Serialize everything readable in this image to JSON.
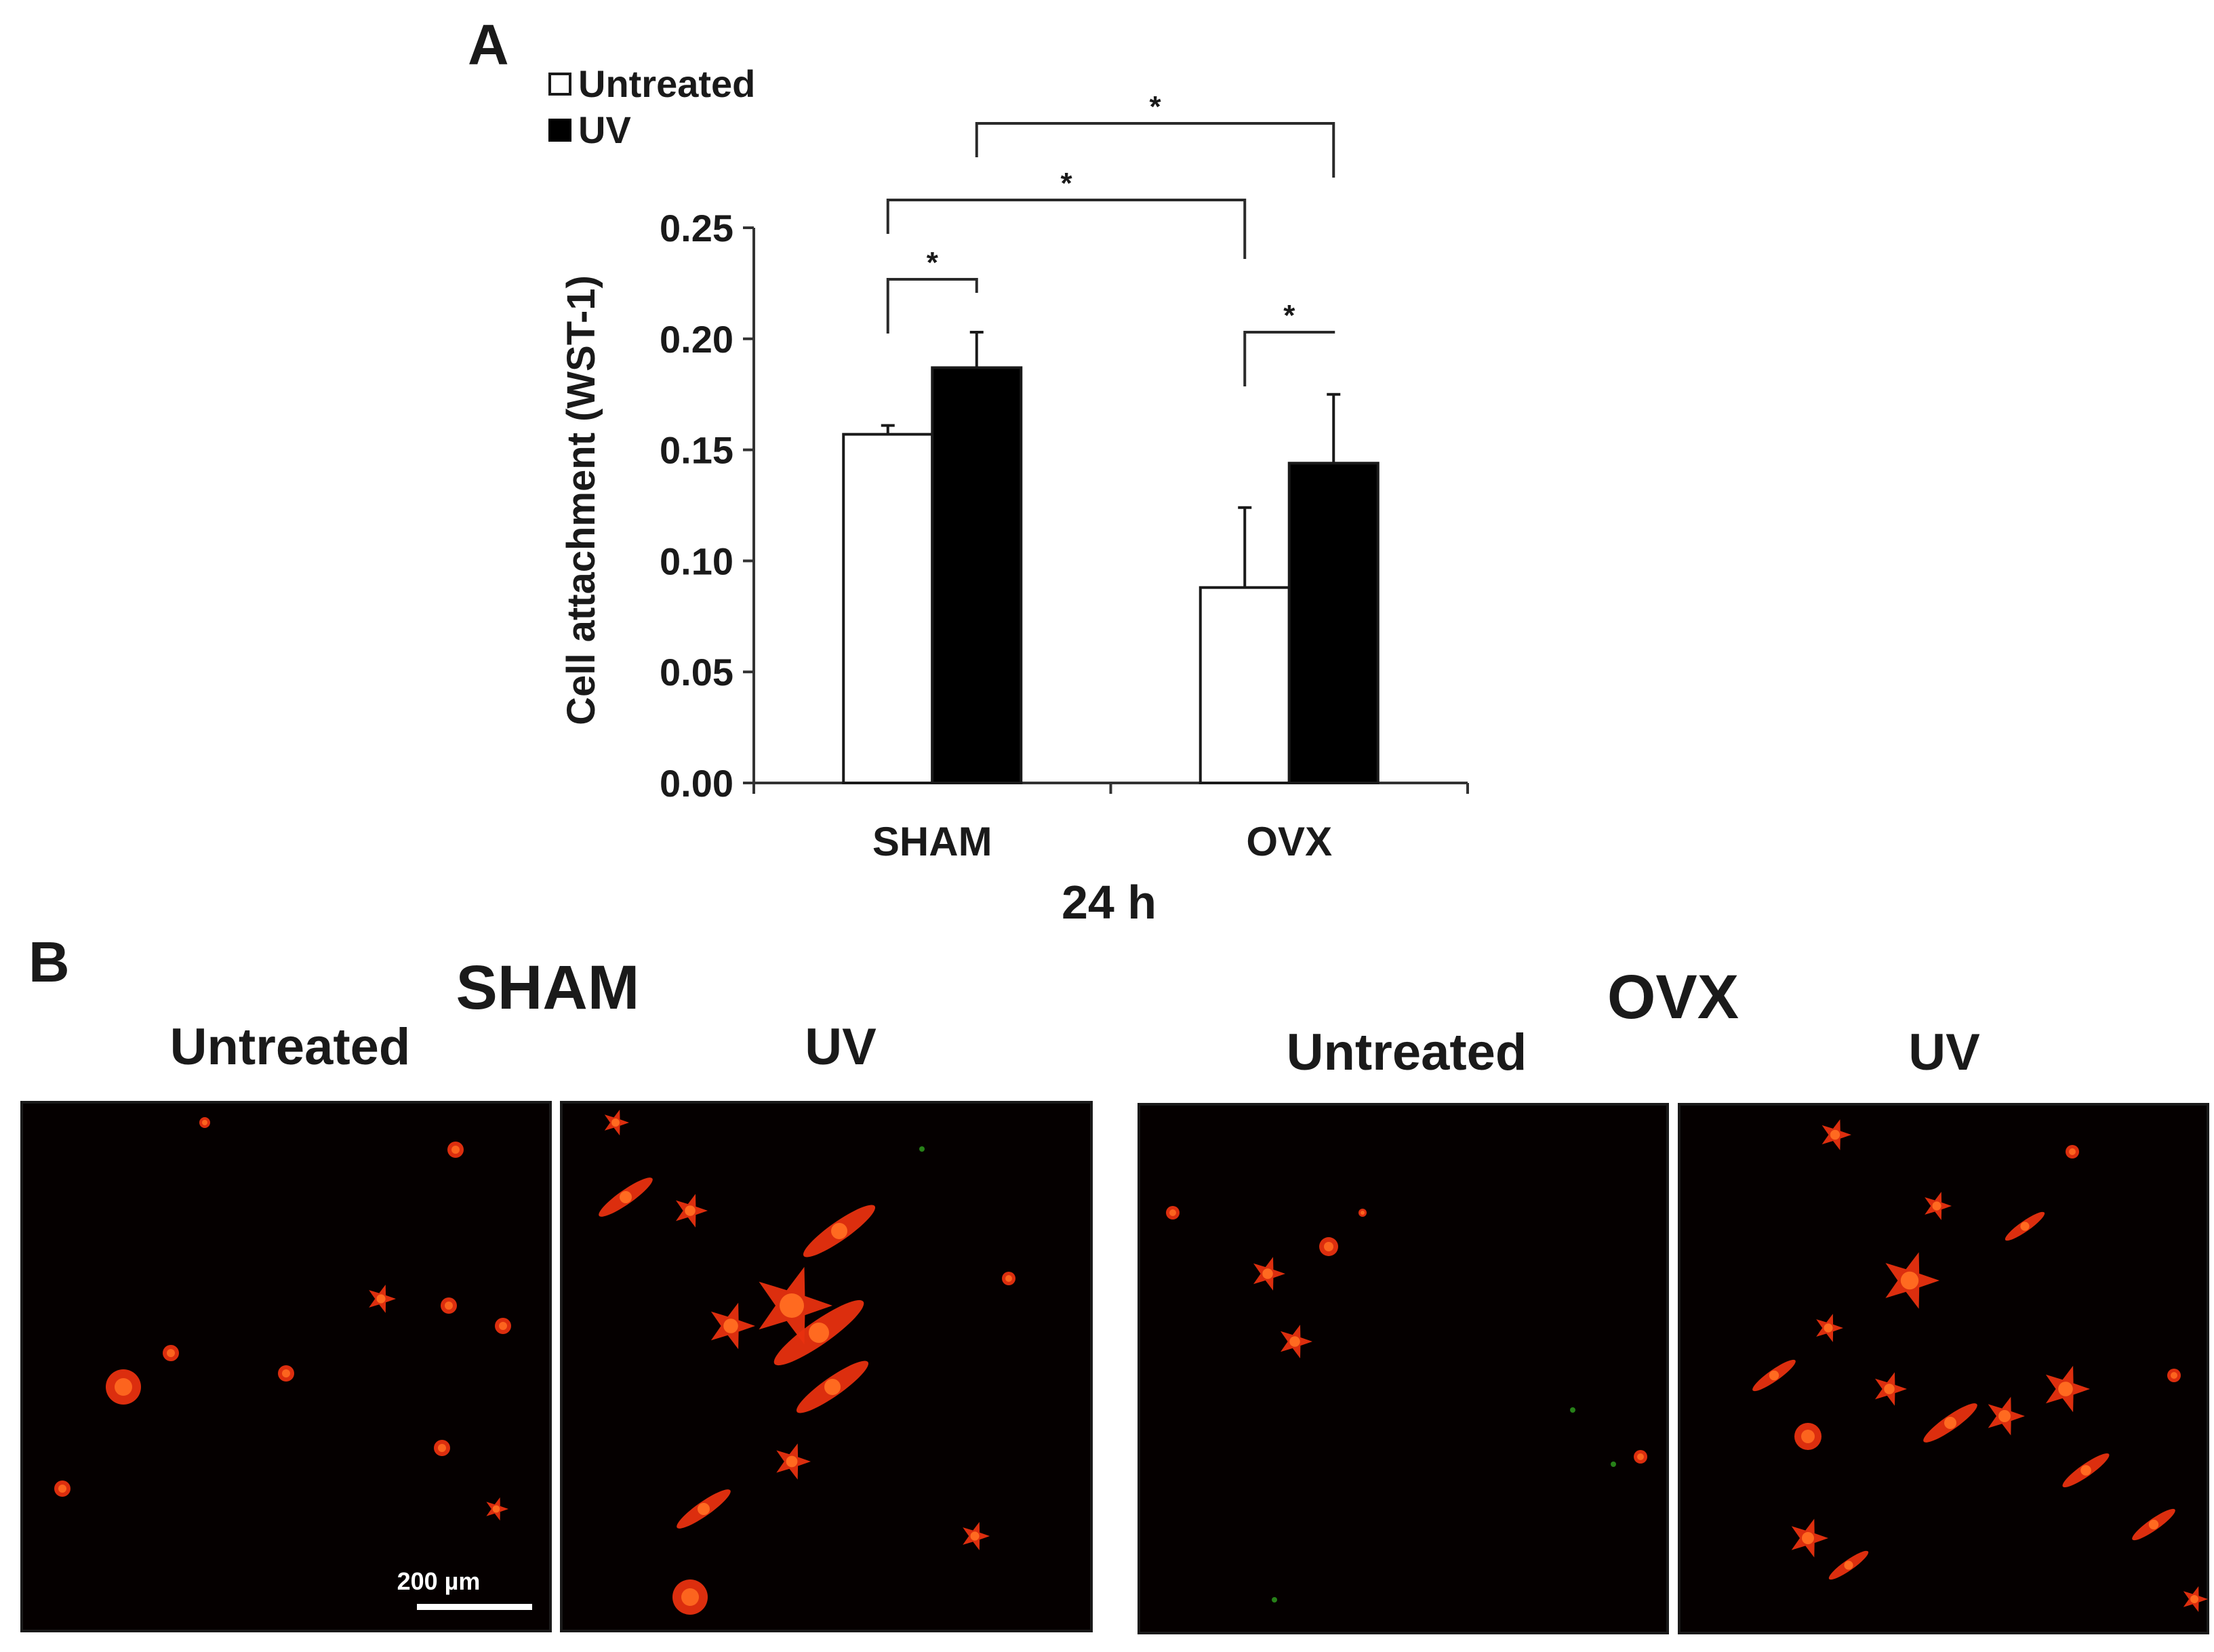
{
  "panel_labels": {
    "a": "A",
    "b": "B"
  },
  "chart_data": {
    "type": "bar",
    "title": "",
    "xlabel": "24 h",
    "ylabel": "Cell attachment (WST-1)",
    "ylim": [
      0,
      0.25
    ],
    "yticks": [
      "0.00",
      "0.05",
      "0.10",
      "0.15",
      "0.20",
      "0.25"
    ],
    "categories": [
      "SHAM",
      "OVX"
    ],
    "series": [
      {
        "name": "Untreated",
        "color": "#ffffff",
        "values": [
          0.157,
          0.088
        ],
        "errors": [
          0.004,
          0.036
        ]
      },
      {
        "name": "UV",
        "color": "#000000",
        "values": [
          0.187,
          0.144
        ],
        "errors": [
          0.016,
          0.031
        ]
      }
    ],
    "legend": {
      "placement": "top-left",
      "entries": [
        "Untreated",
        "UV"
      ]
    },
    "significance": [
      {
        "label": "*",
        "from": "SHAM Untreated",
        "to": "SHAM UV"
      },
      {
        "label": "*",
        "from": "OVX Untreated",
        "to": "OVX UV"
      },
      {
        "label": "*",
        "from": "SHAM Untreated",
        "to": "OVX Untreated"
      },
      {
        "label": "*",
        "from": "SHAM UV",
        "to": "OVX UV"
      }
    ]
  },
  "panel_b": {
    "groups": [
      {
        "title": "SHAM",
        "conditions": [
          "Untreated",
          "UV"
        ]
      },
      {
        "title": "OVX",
        "conditions": [
          "Untreated",
          "UV"
        ]
      }
    ],
    "scale_bar": "200 µm",
    "stain_colors": {
      "background": "#050000",
      "cell": "#e8300f",
      "cell_core": "#ff6a20",
      "green": "#2fa01e"
    }
  }
}
